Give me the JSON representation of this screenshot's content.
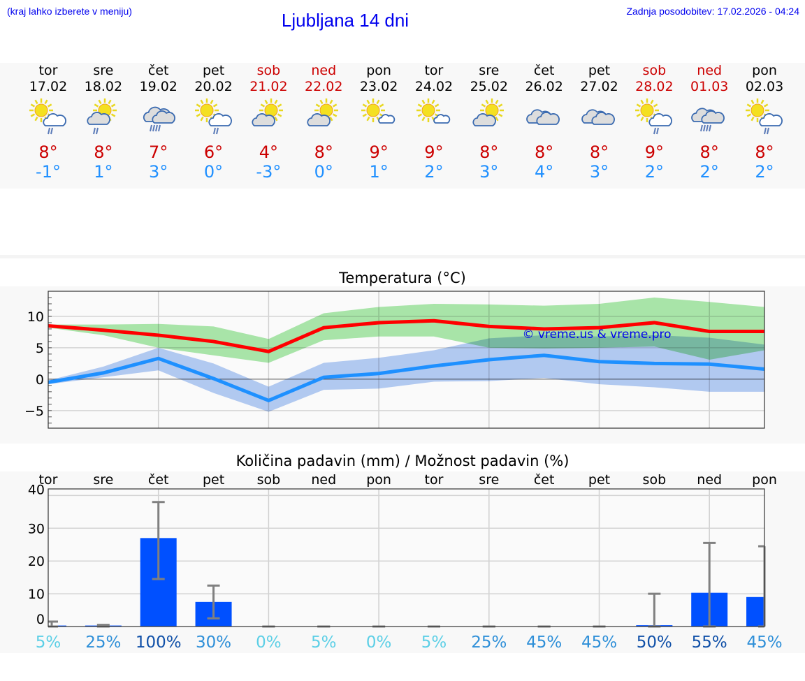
{
  "header": {
    "hint": "(kraj lahko izberete v meniju)",
    "title": "Ljubljana 14 dni",
    "updated": "Zadnja posodobitev: 17.02.2026 - 04:24"
  },
  "days": [
    {
      "name": "tor",
      "date": "17.02",
      "weekend": false,
      "icon": "sun-cloud-rain",
      "max": "8°",
      "min": "-1°"
    },
    {
      "name": "sre",
      "date": "18.02",
      "weekend": false,
      "icon": "cloud-sun-rain",
      "max": "8°",
      "min": "1°"
    },
    {
      "name": "čet",
      "date": "19.02",
      "weekend": false,
      "icon": "cloud-heavy-rain",
      "max": "7°",
      "min": "3°"
    },
    {
      "name": "pet",
      "date": "20.02",
      "weekend": false,
      "icon": "sun-cloud-rain",
      "max": "6°",
      "min": "0°"
    },
    {
      "name": "sob",
      "date": "21.02",
      "weekend": true,
      "icon": "cloud-sun",
      "max": "4°",
      "min": "-3°"
    },
    {
      "name": "ned",
      "date": "22.02",
      "weekend": true,
      "icon": "cloud-sun",
      "max": "8°",
      "min": "0°"
    },
    {
      "name": "pon",
      "date": "23.02",
      "weekend": false,
      "icon": "sun-small-cloud",
      "max": "9°",
      "min": "1°"
    },
    {
      "name": "tor",
      "date": "24.02",
      "weekend": false,
      "icon": "sun-small-cloud",
      "max": "9°",
      "min": "2°"
    },
    {
      "name": "sre",
      "date": "25.02",
      "weekend": false,
      "icon": "cloud-sun",
      "max": "8°",
      "min": "3°"
    },
    {
      "name": "čet",
      "date": "26.02",
      "weekend": false,
      "icon": "cloudy",
      "max": "8°",
      "min": "4°"
    },
    {
      "name": "pet",
      "date": "27.02",
      "weekend": false,
      "icon": "cloudy",
      "max": "8°",
      "min": "3°"
    },
    {
      "name": "sob",
      "date": "28.02",
      "weekend": true,
      "icon": "sun-cloud-rain",
      "max": "9°",
      "min": "2°"
    },
    {
      "name": "ned",
      "date": "01.03",
      "weekend": true,
      "icon": "cloudy-rain",
      "max": "8°",
      "min": "2°"
    },
    {
      "name": "pon",
      "date": "02.03",
      "weekend": false,
      "icon": "sun-cloud-rain",
      "max": "8°",
      "min": "2°"
    }
  ],
  "colors": {
    "max": "#ff0000",
    "min": "#1e90ff",
    "max_band": "#a8e8a8",
    "min_band": "#a8c4f4",
    "bar": "#0050ff",
    "errbar": "#808080"
  },
  "chart_data": [
    {
      "type": "line",
      "title": "Temperatura (°C)",
      "ylim": [
        -7.8,
        14
      ],
      "yticks": [
        -5,
        0,
        5,
        10
      ],
      "ytick_labels": [
        "−5",
        "0",
        "5",
        "10"
      ],
      "grid": true,
      "watermark": "© vreme.us & vreme.pro",
      "x": [
        "17.02",
        "18.02",
        "19.02",
        "20.02",
        "21.02",
        "22.02",
        "23.02",
        "24.02",
        "25.02",
        "26.02",
        "27.02",
        "28.02",
        "01.03",
        "02.03"
      ],
      "series": [
        {
          "values": [
            8.5,
            7.8,
            7.0,
            6.0,
            4.4,
            8.2,
            9.0,
            9.3,
            8.4,
            8.0,
            8.2,
            9.0,
            7.6,
            7.6
          ],
          "band_upper": [
            8.7,
            8.7,
            8.8,
            8.4,
            6.4,
            10.5,
            11.5,
            12.0,
            11.9,
            11.7,
            12.0,
            13.0,
            12.3,
            11.5
          ],
          "band_lower": [
            8.2,
            7.0,
            5.0,
            3.8,
            2.6,
            6.2,
            6.8,
            6.8,
            5.0,
            4.9,
            5.0,
            5.2,
            3.1,
            4.6
          ]
        },
        {
          "values": [
            -0.5,
            1.0,
            3.3,
            0.1,
            -3.4,
            0.3,
            0.9,
            2.1,
            3.1,
            3.8,
            2.8,
            2.5,
            2.4,
            1.6
          ],
          "band_upper": [
            -0.2,
            2.0,
            5.0,
            2.5,
            -1.2,
            2.6,
            3.4,
            4.6,
            6.5,
            7.0,
            6.8,
            7.0,
            6.6,
            5.5
          ],
          "band_lower": [
            -0.8,
            0.3,
            1.4,
            -2.2,
            -5.2,
            -1.7,
            -1.5,
            -0.4,
            -0.3,
            0.2,
            -0.8,
            -1.3,
            -2.0,
            -2.0
          ]
        }
      ]
    },
    {
      "type": "bar",
      "title": "Količina padavin (mm) / Možnost padavin (%)",
      "ylim": [
        0,
        42
      ],
      "yticks": [
        0,
        10,
        20,
        30,
        40
      ],
      "ytick_labels": [
        "0",
        "10",
        "20",
        "30",
        "40"
      ],
      "grid": true,
      "categories": [
        "tor",
        "sre",
        "čet",
        "pet",
        "sob",
        "ned",
        "pon",
        "tor",
        "sre",
        "čet",
        "pet",
        "sob",
        "ned",
        "pon"
      ],
      "values": [
        0.3,
        0.3,
        27,
        7.5,
        0,
        0,
        0,
        0,
        0,
        0,
        0,
        0.4,
        10.3,
        9.0
      ],
      "err_low": [
        0,
        0,
        14.5,
        2.5,
        0,
        0,
        0,
        0,
        0,
        0,
        0,
        0,
        0,
        0
      ],
      "err_high": [
        1.5,
        0.5,
        38,
        12.5,
        0,
        0,
        0,
        0,
        0,
        0,
        0,
        10,
        25.5,
        24.5
      ],
      "probability": [
        "5%",
        "25%",
        "100%",
        "30%",
        "0%",
        "5%",
        "0%",
        "5%",
        "25%",
        "45%",
        "45%",
        "50%",
        "55%",
        "45%"
      ],
      "probability_colors": [
        "#5ccfe6",
        "#2e8fd8",
        "#1050a8",
        "#2e8fd8",
        "#5ccfe6",
        "#5ccfe6",
        "#5ccfe6",
        "#5ccfe6",
        "#2e8fd8",
        "#2e8fd8",
        "#2e8fd8",
        "#1050a8",
        "#1050a8",
        "#2e8fd8"
      ]
    }
  ]
}
